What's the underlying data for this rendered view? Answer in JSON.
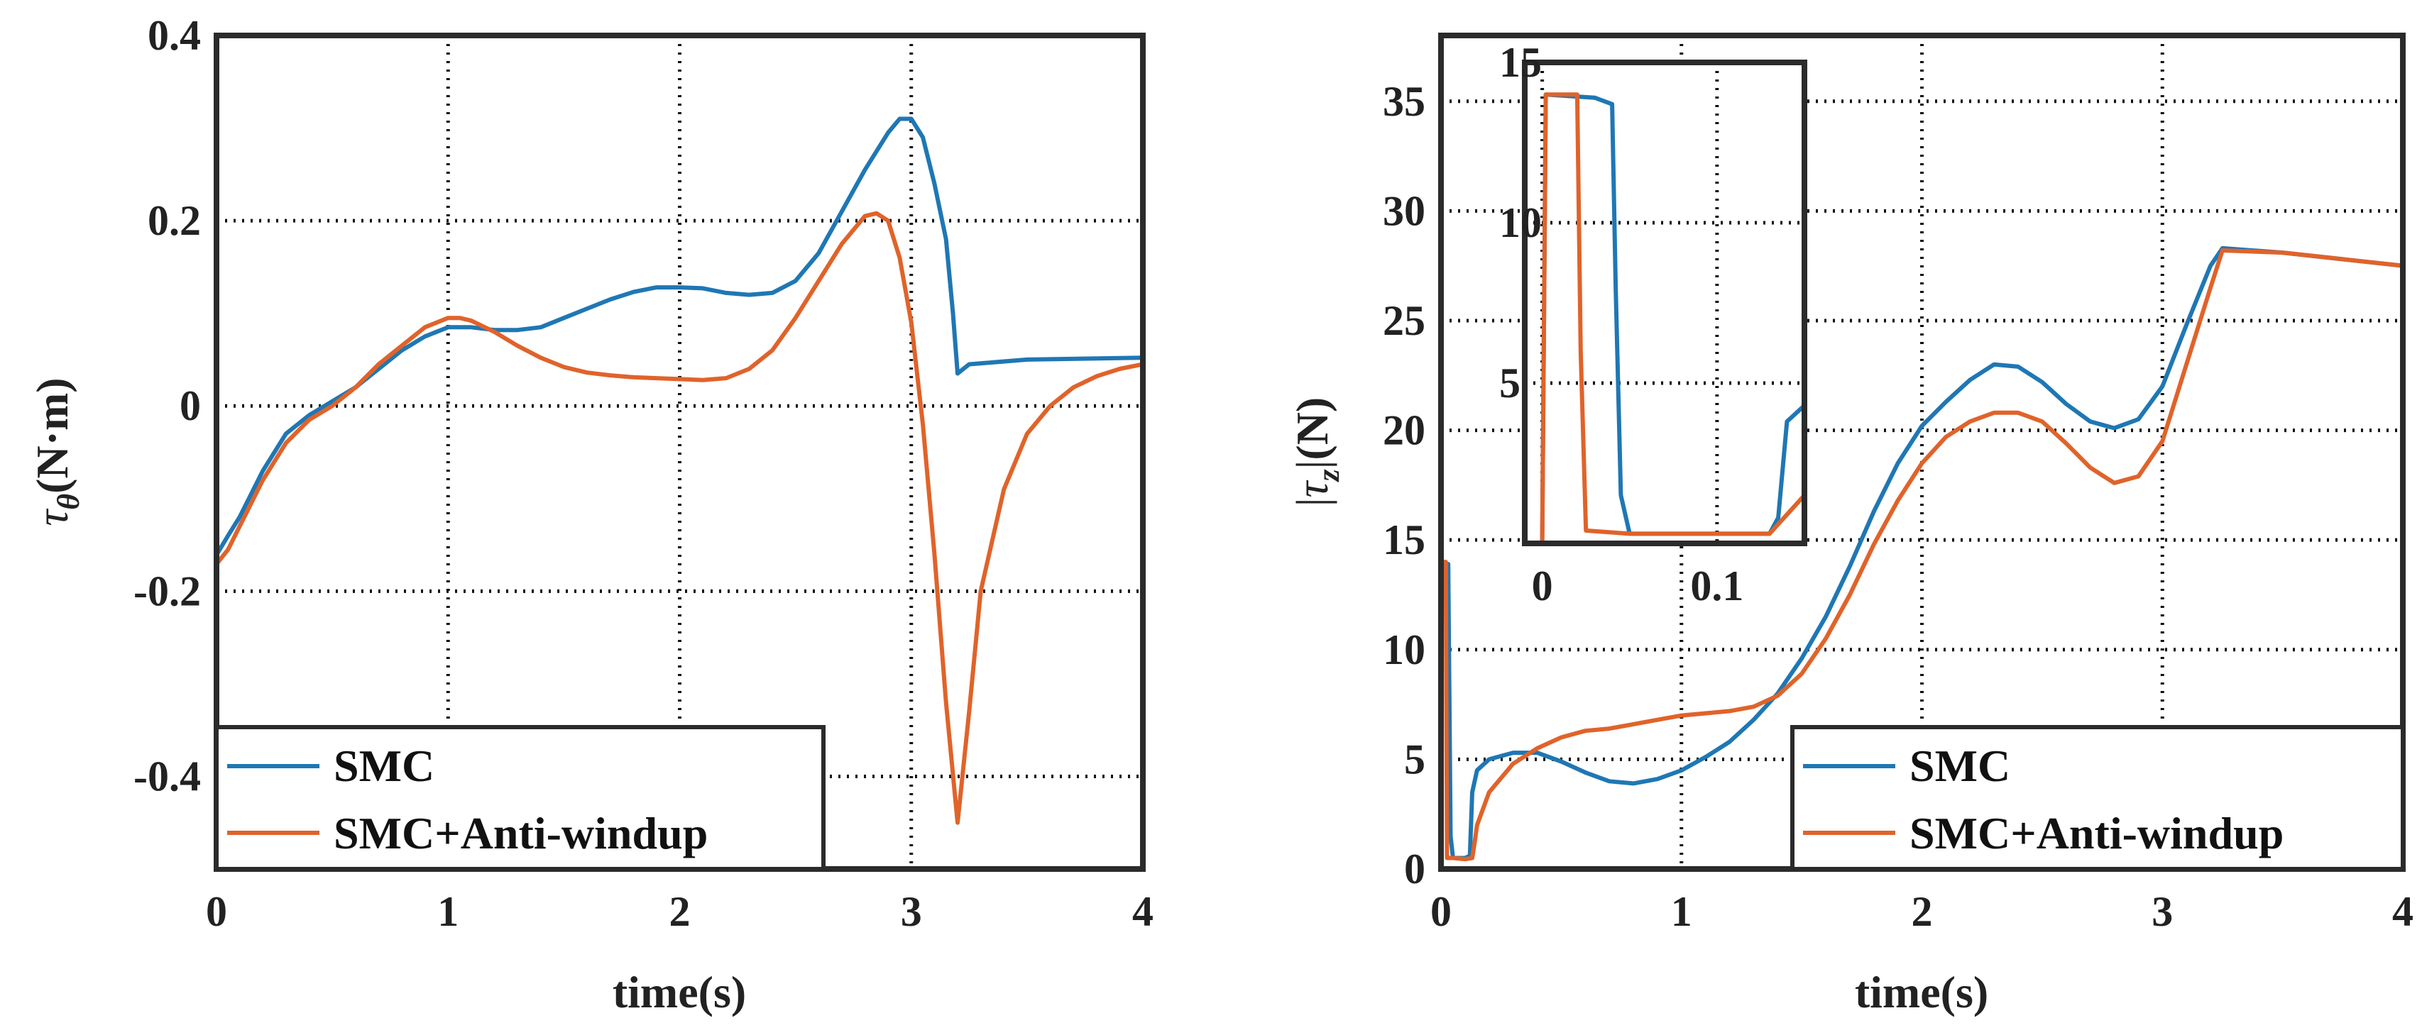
{
  "colors": {
    "smc": "#1f77b4",
    "anti": "#e0632a",
    "axis": "#2b2b2b"
  },
  "chart_data": [
    {
      "id": "left",
      "type": "line",
      "ylabel_symbol": "τ",
      "ylabel_subscript": "θ",
      "ylabel_units": "(N·m)",
      "xlabel": "time(s)",
      "xlim": [
        0,
        4
      ],
      "ylim": [
        -0.5,
        0.4
      ],
      "xticks": [
        0,
        1,
        2,
        3,
        4
      ],
      "xtick_labels": [
        "0",
        "1",
        "2",
        "3",
        "4"
      ],
      "yticks": [
        -0.4,
        -0.2,
        0,
        0.2,
        0.4
      ],
      "ytick_labels": [
        "-0.4",
        "-0.2",
        "0",
        "0.2",
        "0.4"
      ],
      "grid": true,
      "legend": {
        "placement": "bottom-left",
        "entries": [
          "SMC",
          "SMC+Anti-windup"
        ]
      },
      "series": [
        {
          "name": "SMC",
          "color_key": "smc",
          "x": [
            0,
            0.002,
            0.05,
            0.1,
            0.2,
            0.3,
            0.4,
            0.5,
            0.6,
            0.7,
            0.8,
            0.9,
            1.0,
            1.1,
            1.2,
            1.3,
            1.4,
            1.5,
            1.6,
            1.7,
            1.8,
            1.9,
            2.0,
            2.1,
            2.2,
            2.3,
            2.4,
            2.5,
            2.6,
            2.7,
            2.8,
            2.9,
            2.95,
            3.0,
            3.05,
            3.1,
            3.15,
            3.18,
            3.2,
            3.25,
            3.5,
            4.0
          ],
          "y": [
            0,
            -0.16,
            -0.14,
            -0.12,
            -0.07,
            -0.03,
            -0.01,
            0.005,
            0.02,
            0.04,
            0.06,
            0.075,
            0.085,
            0.085,
            0.082,
            0.082,
            0.085,
            0.095,
            0.105,
            0.115,
            0.123,
            0.128,
            0.128,
            0.127,
            0.122,
            0.12,
            0.122,
            0.135,
            0.165,
            0.21,
            0.255,
            0.295,
            0.31,
            0.31,
            0.29,
            0.24,
            0.18,
            0.1,
            0.035,
            0.045,
            0.05,
            0.052
          ]
        },
        {
          "name": "SMC+Anti-windup",
          "color_key": "anti",
          "x": [
            0,
            0.002,
            0.05,
            0.1,
            0.2,
            0.3,
            0.4,
            0.5,
            0.6,
            0.7,
            0.8,
            0.9,
            1.0,
            1.05,
            1.1,
            1.2,
            1.3,
            1.4,
            1.5,
            1.6,
            1.7,
            1.8,
            1.9,
            2.0,
            2.1,
            2.2,
            2.3,
            2.4,
            2.5,
            2.6,
            2.7,
            2.8,
            2.85,
            2.9,
            2.95,
            3.0,
            3.05,
            3.1,
            3.15,
            3.2,
            3.25,
            3.3,
            3.4,
            3.5,
            3.6,
            3.7,
            3.8,
            3.9,
            4.0
          ],
          "y": [
            0,
            -0.17,
            -0.155,
            -0.13,
            -0.08,
            -0.04,
            -0.015,
            0.0,
            0.02,
            0.045,
            0.065,
            0.085,
            0.095,
            0.095,
            0.092,
            0.08,
            0.065,
            0.052,
            0.042,
            0.036,
            0.033,
            0.031,
            0.03,
            0.029,
            0.028,
            0.03,
            0.04,
            0.06,
            0.095,
            0.135,
            0.175,
            0.205,
            0.208,
            0.2,
            0.16,
            0.09,
            -0.02,
            -0.16,
            -0.32,
            -0.45,
            -0.33,
            -0.2,
            -0.09,
            -0.03,
            0.0,
            0.02,
            0.032,
            0.04,
            0.045
          ]
        }
      ]
    },
    {
      "id": "right",
      "type": "line",
      "ylabel_symbol": "τ",
      "ylabel_subscript": "z",
      "ylabel_units": "(N)",
      "xlabel": "time(s)",
      "xlim": [
        0,
        4
      ],
      "ylim": [
        0,
        38
      ],
      "xticks": [
        0,
        1,
        2,
        3,
        4
      ],
      "xtick_labels": [
        "0",
        "1",
        "2",
        "3",
        "4"
      ],
      "yticks": [
        0,
        5,
        10,
        15,
        20,
        25,
        30,
        35
      ],
      "ytick_labels": [
        "0",
        "5",
        "10",
        "15",
        "20",
        "25",
        "30",
        "35"
      ],
      "grid": true,
      "legend": {
        "placement": "bottom-right",
        "entries": [
          "SMC",
          "SMC+Anti-windup"
        ]
      },
      "series": [
        {
          "name": "SMC",
          "color_key": "smc",
          "x": [
            0,
            0.002,
            0.03,
            0.04,
            0.05,
            0.1,
            0.12,
            0.13,
            0.15,
            0.2,
            0.3,
            0.4,
            0.5,
            0.6,
            0.7,
            0.8,
            0.9,
            1.0,
            1.1,
            1.2,
            1.3,
            1.4,
            1.5,
            1.6,
            1.7,
            1.8,
            1.9,
            2.0,
            2.1,
            2.2,
            2.3,
            2.4,
            2.5,
            2.6,
            2.7,
            2.8,
            2.9,
            3.0,
            3.1,
            3.2,
            3.25,
            3.5,
            4.0
          ],
          "y": [
            0,
            14,
            13.9,
            1.5,
            0.5,
            0.5,
            0.6,
            3.5,
            4.5,
            5.0,
            5.3,
            5.3,
            4.9,
            4.4,
            4.0,
            3.9,
            4.1,
            4.5,
            5.1,
            5.8,
            6.8,
            8.0,
            9.6,
            11.5,
            13.8,
            16.3,
            18.5,
            20.2,
            21.3,
            22.3,
            23.0,
            22.9,
            22.2,
            21.2,
            20.4,
            20.1,
            20.5,
            22.0,
            24.8,
            27.5,
            28.3,
            28.1,
            27.5
          ]
        },
        {
          "name": "SMC+Anti-windup",
          "color_key": "anti",
          "x": [
            0,
            0.002,
            0.02,
            0.025,
            0.05,
            0.1,
            0.13,
            0.14,
            0.15,
            0.2,
            0.3,
            0.4,
            0.5,
            0.6,
            0.7,
            0.8,
            0.9,
            1.0,
            1.1,
            1.2,
            1.3,
            1.4,
            1.5,
            1.6,
            1.7,
            1.8,
            1.9,
            2.0,
            2.1,
            2.2,
            2.3,
            2.4,
            2.5,
            2.6,
            2.7,
            2.8,
            2.9,
            3.0,
            3.1,
            3.2,
            3.25,
            3.5,
            4.0
          ],
          "y": [
            0,
            14,
            14,
            0.5,
            0.5,
            0.45,
            0.5,
            1.2,
            2.0,
            3.5,
            4.8,
            5.5,
            6.0,
            6.3,
            6.4,
            6.6,
            6.8,
            7.0,
            7.1,
            7.2,
            7.4,
            7.9,
            8.9,
            10.5,
            12.5,
            14.8,
            16.8,
            18.5,
            19.7,
            20.4,
            20.8,
            20.8,
            20.4,
            19.4,
            18.3,
            17.6,
            17.9,
            19.5,
            23.0,
            26.5,
            28.2,
            28.1,
            27.5
          ]
        }
      ],
      "inset": {
        "xlim": [
          -0.01,
          0.15
        ],
        "ylim": [
          0,
          15
        ],
        "xticks": [
          0,
          0.1
        ],
        "xtick_labels": [
          "0",
          "0.1"
        ],
        "yticks": [
          5,
          10,
          15
        ],
        "ytick_labels": [
          "5",
          "10",
          "15"
        ],
        "grid": true,
        "series": [
          {
            "name": "SMC",
            "color_key": "smc",
            "x": [
              0,
              0.002,
              0.03,
              0.04,
              0.042,
              0.045,
              0.05,
              0.13,
              0.135,
              0.14,
              0.15
            ],
            "y": [
              0,
              14,
              13.9,
              13.7,
              8.0,
              1.5,
              0.3,
              0.3,
              0.8,
              3.8,
              4.3
            ]
          },
          {
            "name": "SMC+Anti-windup",
            "color_key": "anti",
            "x": [
              0,
              0.002,
              0.02,
              0.022,
              0.025,
              0.05,
              0.13,
              0.14,
              0.15
            ],
            "y": [
              0,
              14,
              14,
              6.0,
              0.4,
              0.3,
              0.3,
              0.9,
              1.5
            ]
          }
        ]
      }
    }
  ]
}
